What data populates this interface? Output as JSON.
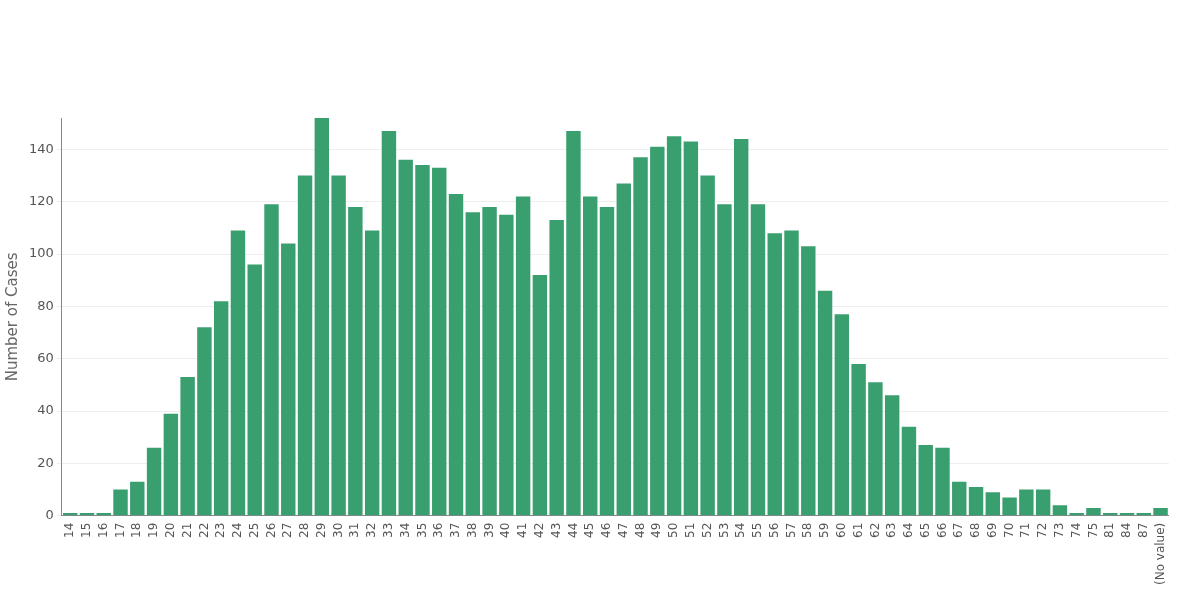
{
  "chart_data": {
    "type": "bar",
    "y_label": "Number of Cases",
    "categories": [
      "14",
      "15",
      "16",
      "17",
      "18",
      "19",
      "20",
      "21",
      "22",
      "23",
      "24",
      "25",
      "26",
      "27",
      "28",
      "29",
      "30",
      "31",
      "32",
      "33",
      "34",
      "35",
      "36",
      "37",
      "38",
      "39",
      "40",
      "41",
      "42",
      "43",
      "44",
      "45",
      "46",
      "47",
      "48",
      "49",
      "50",
      "51",
      "52",
      "53",
      "54",
      "55",
      "56",
      "57",
      "58",
      "59",
      "60",
      "61",
      "62",
      "63",
      "64",
      "65",
      "66",
      "67",
      "68",
      "69",
      "70",
      "71",
      "72",
      "73",
      "74",
      "75",
      "81",
      "84",
      "87",
      "(No value)"
    ],
    "values": [
      1,
      1,
      1,
      10,
      13,
      26,
      39,
      53,
      72,
      82,
      109,
      96,
      119,
      104,
      130,
      152,
      130,
      118,
      109,
      147,
      136,
      134,
      133,
      123,
      116,
      118,
      115,
      122,
      92,
      113,
      147,
      122,
      118,
      127,
      137,
      141,
      145,
      143,
      130,
      119,
      144,
      119,
      108,
      109,
      103,
      86,
      77,
      58,
      51,
      46,
      34,
      27,
      26,
      13,
      11,
      9,
      7,
      10,
      10,
      4,
      1,
      3,
      1,
      1,
      1,
      3
    ],
    "color": "#3a9f6f",
    "ylim": [
      0,
      152
    ],
    "yticks": [
      0,
      20,
      40,
      60,
      80,
      100,
      120,
      140
    ],
    "grid": true
  }
}
